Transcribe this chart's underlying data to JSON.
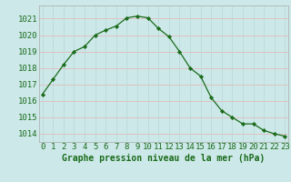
{
  "hours": [
    0,
    1,
    2,
    3,
    4,
    5,
    6,
    7,
    8,
    9,
    10,
    11,
    12,
    13,
    14,
    15,
    16,
    17,
    18,
    19,
    20,
    21,
    22,
    23
  ],
  "pressure": [
    1016.4,
    1017.3,
    1018.2,
    1019.0,
    1019.3,
    1020.0,
    1020.3,
    1020.55,
    1021.05,
    1021.15,
    1021.05,
    1020.4,
    1019.9,
    1019.0,
    1018.0,
    1017.5,
    1016.2,
    1015.4,
    1015.0,
    1014.6,
    1014.6,
    1014.2,
    1014.0,
    1013.85
  ],
  "line_color": "#1a6b1a",
  "marker_color": "#1a6b1a",
  "bg_color": "#cce8e8",
  "grid_color_h": "#e8b0b0",
  "grid_color_v": "#b8d8d8",
  "title": "Graphe pression niveau de la mer (hPa)",
  "title_color": "#1a6b1a",
  "ylabel_vals": [
    1014,
    1015,
    1016,
    1017,
    1018,
    1019,
    1020,
    1021
  ],
  "ylim": [
    1013.5,
    1021.8
  ],
  "xlim": [
    -0.3,
    23.3
  ],
  "tick_fontsize": 6.5,
  "title_fontsize": 7.0
}
